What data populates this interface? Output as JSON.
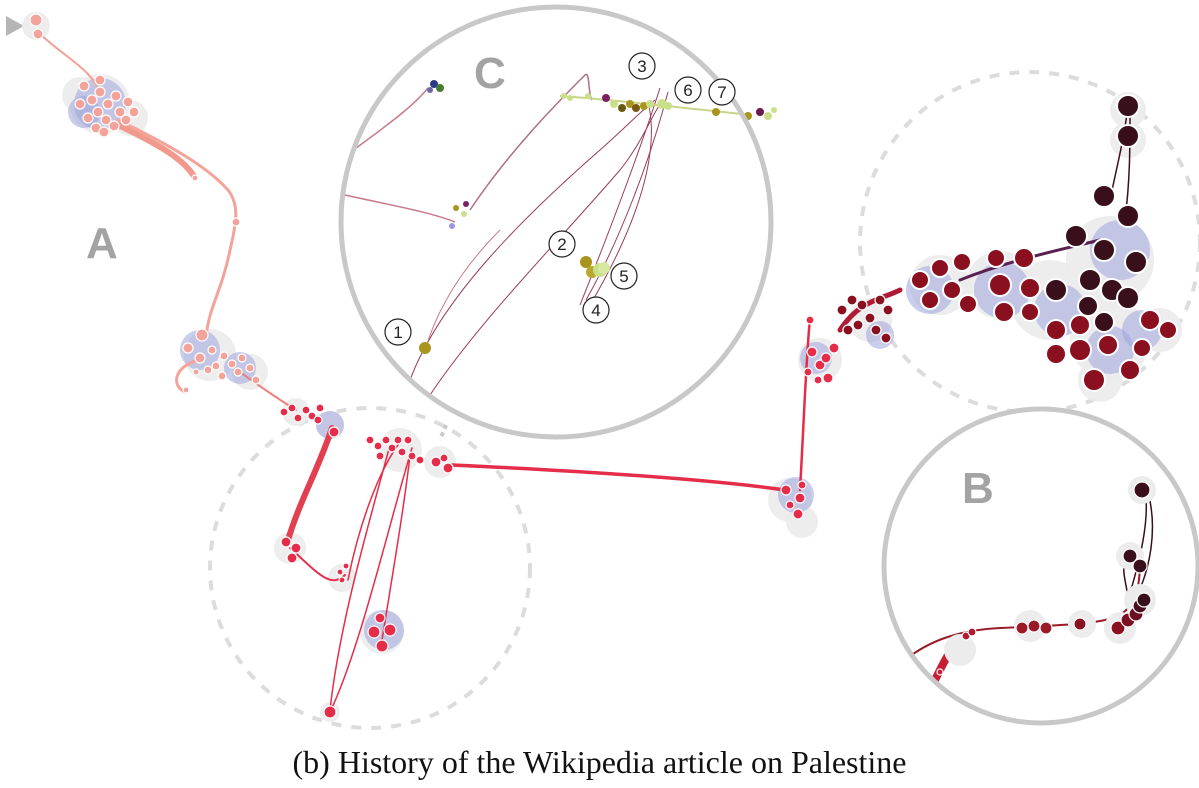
{
  "caption": "(b)  History of the Wikipedia article on Palestine",
  "region_labels": {
    "a": "A",
    "b": "B",
    "c": "C"
  },
  "numbered_markers": [
    "1",
    "2",
    "3",
    "4",
    "5",
    "6",
    "7"
  ],
  "colors": {
    "early": "#f4a39a",
    "mid": "#e52d4a",
    "late": "#8a1020",
    "dark": "#3a0f1c",
    "halo": "#ececec",
    "cluster": "#9ea6dc",
    "lens_border": "#c8c8c8",
    "olive": "#a9941c",
    "lime": "#c9e08a"
  }
}
